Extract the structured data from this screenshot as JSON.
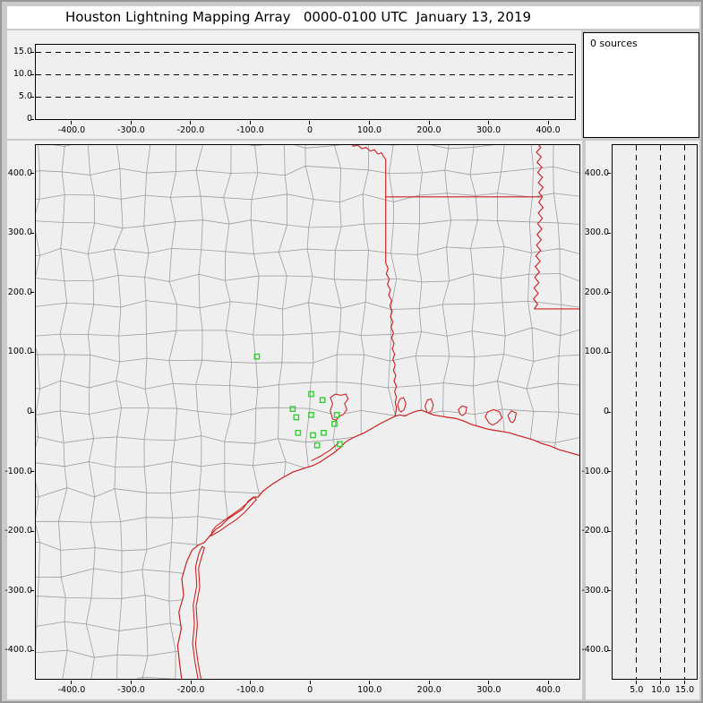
{
  "title": "Houston Lightning Mapping Array   0000-0100 UTC  January 13, 2019",
  "sources_label": "0 sources",
  "colors": {
    "window_bg": "#cacaca",
    "panel_bg": "#efefef",
    "titlebar_bg": "#ffffff",
    "axis": "#000000",
    "county_line": "#9e9e9e",
    "state_line": "#cc2020",
    "station": "#2ecc2e"
  },
  "chart_data": {
    "type": "scatter",
    "title": "Houston Lightning Mapping Array",
    "time_window_utc": "0000-0100",
    "date": "January 13, 2019",
    "source_count": 0,
    "sources": [],
    "panels": {
      "ew_altitude": {
        "content": "altitude (km) vs east-west distance (km); empty, no sources",
        "x_range": [
          -460,
          445
        ],
        "y_range": [
          0,
          16.6
        ],
        "x_ticks": [
          -400,
          -300,
          -200,
          -100,
          0,
          100,
          200,
          300,
          400
        ],
        "x_tick_labels": [
          "-400.0",
          "-300.0",
          "-200.0",
          "-100.0",
          "0",
          "100.0",
          "200.0",
          "300.0",
          "400.0"
        ],
        "y_ticks": [
          15,
          10,
          5,
          0
        ],
        "y_tick_labels": [
          "15.0",
          "10.0",
          "5.0",
          "0"
        ],
        "dashed_y": [
          5,
          10,
          15
        ]
      },
      "plan_map": {
        "content": "plan view; county and state boundaries with LMA station squares; empty, no sources",
        "x_range": [
          -460,
          452
        ],
        "y_range": [
          -448,
          448
        ],
        "x_ticks": [
          -400,
          -300,
          -200,
          -100,
          0,
          100,
          200,
          300,
          400
        ],
        "x_tick_labels": [
          "-400.0",
          "-300.0",
          "-200.0",
          "-100.0",
          "0",
          "100.0",
          "200.0",
          "300.0",
          "400.0"
        ],
        "y_ticks": [
          400,
          300,
          200,
          100,
          0,
          -100,
          -200,
          -300,
          -400
        ],
        "y_tick_labels": [
          "400.0",
          "300.0",
          "200.0",
          "100.0",
          "0",
          "-100.0",
          "-200.0",
          "-300.0",
          "-400.0"
        ],
        "stations_east_north_km": [
          [
            -89,
            93
          ],
          [
            2,
            30
          ],
          [
            21,
            20
          ],
          [
            -29,
            5
          ],
          [
            -23,
            -9
          ],
          [
            2,
            -5
          ],
          [
            45,
            -5
          ],
          [
            41,
            -20
          ],
          [
            -20,
            -35
          ],
          [
            5,
            -39
          ],
          [
            23,
            -35
          ],
          [
            12,
            -56
          ],
          [
            50,
            -54
          ]
        ]
      },
      "ns_altitude": {
        "content": "north-south distance (km) vs altitude (km); empty, no sources",
        "x_range": [
          0,
          17.5
        ],
        "y_range": [
          -448,
          448
        ],
        "x_ticks": [
          5,
          10,
          15
        ],
        "x_tick_labels": [
          "5.0",
          "10.0",
          "15.0"
        ],
        "y_ticks": [
          400,
          300,
          200,
          100,
          0,
          -100,
          -200,
          -300,
          -400
        ],
        "y_tick_labels": [
          "400.0",
          "300.0",
          "200.0",
          "100.0",
          "0",
          "-100.0",
          "-200.0",
          "-300.0",
          "-400.0"
        ],
        "dashed_x": [
          5,
          10,
          15
        ]
      }
    }
  }
}
